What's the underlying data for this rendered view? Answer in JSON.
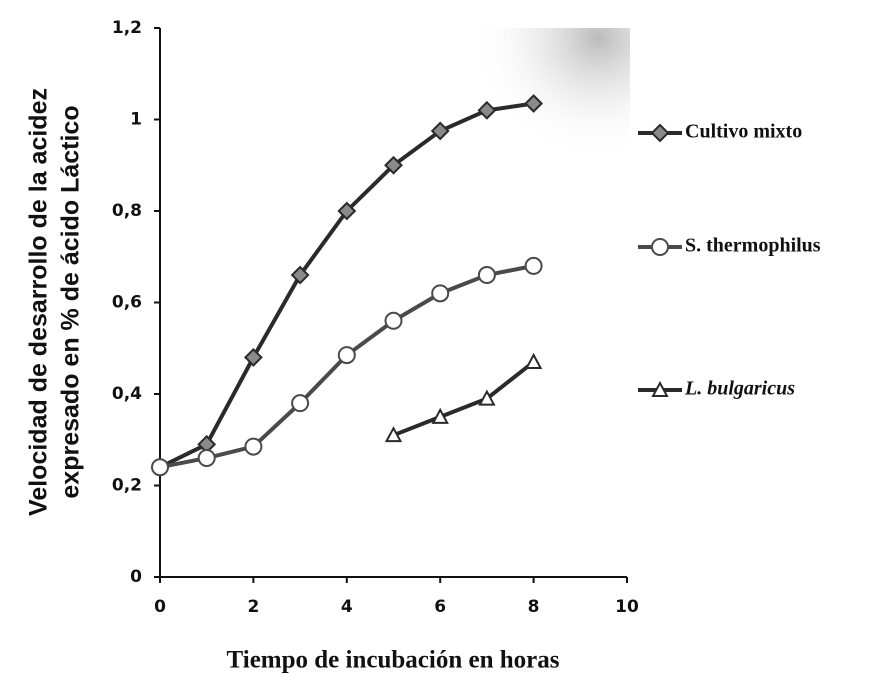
{
  "chart_data": {
    "type": "line",
    "xlabel": "Tiempo de incubación en horas",
    "ylabel": [
      "Velocidad de desarrollo de la acidez",
      "expresado en %  de ácido Láctico"
    ],
    "x": [
      0,
      1,
      2,
      3,
      4,
      5,
      6,
      7,
      8
    ],
    "series": [
      {
        "name": "Cultivo mixto",
        "color": "#2a2a2a",
        "marker": "diamond",
        "values": [
          0.24,
          0.29,
          0.48,
          0.66,
          0.8,
          0.9,
          0.975,
          1.02,
          1.035
        ]
      },
      {
        "name": "S. thermophilus",
        "color": "#4a4a4a",
        "marker": "circle",
        "values": [
          0.24,
          0.26,
          0.285,
          0.38,
          0.485,
          0.56,
          0.62,
          0.66,
          0.68
        ]
      },
      {
        "name": "L. bulgaricus",
        "color": "#2a2a2a",
        "marker": "triangle",
        "values": [
          null,
          null,
          null,
          null,
          null,
          0.31,
          0.35,
          0.39,
          0.47
        ]
      }
    ],
    "xlim": [
      0,
      10
    ],
    "xticks": [
      0,
      2,
      4,
      6,
      8,
      10
    ],
    "ylim": [
      0,
      1.2
    ],
    "yticks": [
      0,
      {
        "value": 0.2,
        "label": "0,2"
      },
      {
        "value": 0.4,
        "label": "0,4"
      },
      {
        "value": 0.6,
        "label": "0,6"
      },
      {
        "value": 0.8,
        "label": "0,8"
      },
      1,
      {
        "value": 1.2,
        "label": "1,2"
      }
    ],
    "legend": "right"
  }
}
